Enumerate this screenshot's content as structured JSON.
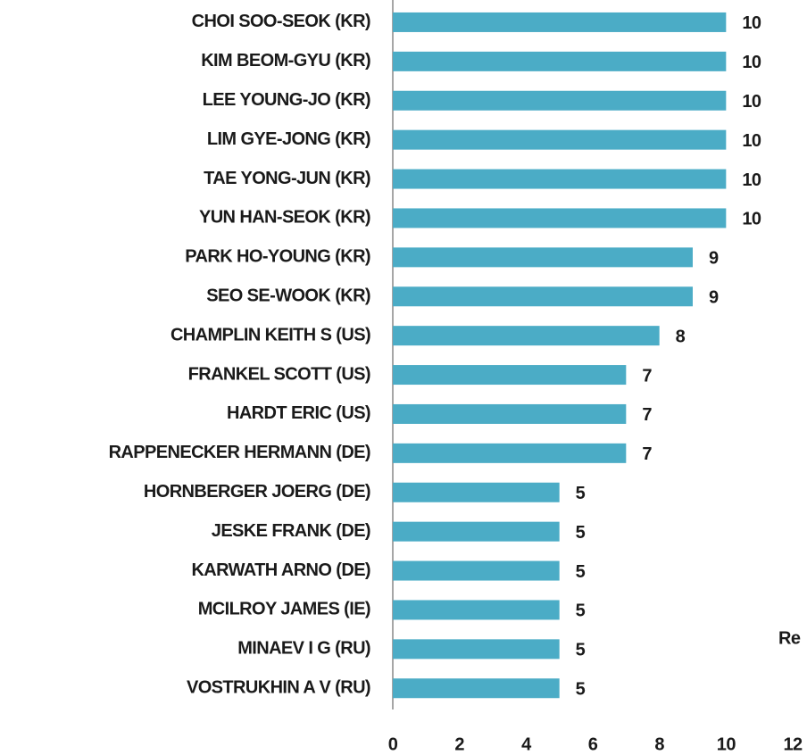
{
  "chart_data": {
    "type": "bar",
    "orientation": "horizontal",
    "categories": [
      "CHOI SOO-SEOK (KR)",
      "KIM BEOM-GYU (KR)",
      "LEE YOUNG-JO (KR)",
      "LIM GYE-JONG (KR)",
      "TAE YONG-JUN (KR)",
      "YUN HAN-SEOK (KR)",
      "PARK HO-YOUNG (KR)",
      "SEO SE-WOOK (KR)",
      "CHAMPLIN KEITH S (US)",
      "FRANKEL SCOTT (US)",
      "HARDT ERIC (US)",
      "RAPPENECKER HERMANN (DE)",
      "HORNBERGER JOERG (DE)",
      "JESKE FRANK (DE)",
      "KARWATH ARNO (DE)",
      "MCILROY JAMES (IE)",
      "MINAEV I G (RU)",
      "VOSTRUKHIN A V (RU)"
    ],
    "values": [
      10,
      10,
      10,
      10,
      10,
      10,
      9,
      9,
      8,
      7,
      7,
      7,
      5,
      5,
      5,
      5,
      5,
      5
    ],
    "color": "#4bacc6",
    "xlim": [
      0,
      12
    ],
    "xticks": [
      0,
      2,
      4,
      6,
      8,
      10,
      12
    ],
    "annotation": "Re",
    "grid": false
  }
}
